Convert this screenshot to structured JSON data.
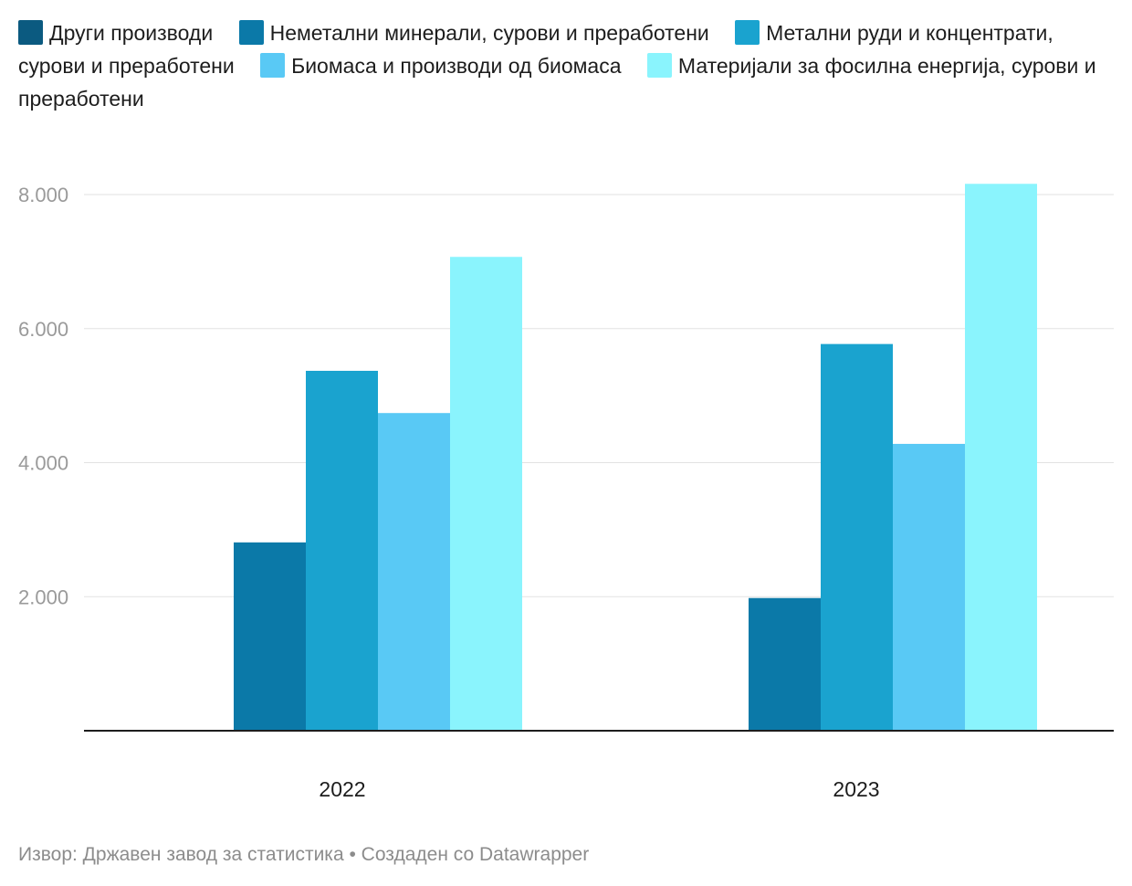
{
  "legend": [
    {
      "label": "Други производи",
      "color": "#0b5a80"
    },
    {
      "label": "Неметални минерали, сурови и преработени",
      "color": "#0b79a8"
    },
    {
      "label": "Метални руди и концентрати, сурови и преработени",
      "color": "#1aa3cf"
    },
    {
      "label": "Биомаса и производи од биомаса",
      "color": "#59c9f5"
    },
    {
      "label": "Материјали за фосилна енергија, сурови и преработени",
      "color": "#8af4fd"
    }
  ],
  "footer": {
    "source": "Извор: Државен завод за статистика",
    "separator": " • ",
    "credit": "Создаден со Datawrapper"
  },
  "chart_data": {
    "type": "bar",
    "categories": [
      "2022",
      "2023"
    ],
    "series": [
      {
        "name": "Други производи",
        "color": "#0b5a80",
        "values": [
          0,
          0
        ]
      },
      {
        "name": "Неметални минерали, сурови и преработени",
        "color": "#0b79a8",
        "values": [
          2810,
          1980
        ]
      },
      {
        "name": "Метални руди и концентрати, сурови и преработени",
        "color": "#1aa3cf",
        "values": [
          5370,
          5770
        ]
      },
      {
        "name": "Биомаса и производи од биомаса",
        "color": "#59c9f5",
        "values": [
          4740,
          4280
        ]
      },
      {
        "name": "Материјали за фосилна енергија, сурови и преработени",
        "color": "#8af4fd",
        "values": [
          7070,
          8160
        ]
      }
    ],
    "yticks": [
      2000,
      4000,
      6000,
      8000
    ],
    "ytick_labels": [
      "2.000",
      "4.000",
      "6.000",
      "8.000"
    ],
    "ylim": [
      0,
      8400
    ],
    "grid": true,
    "legend_position": "top",
    "title": "",
    "xlabel": "",
    "ylabel": ""
  }
}
